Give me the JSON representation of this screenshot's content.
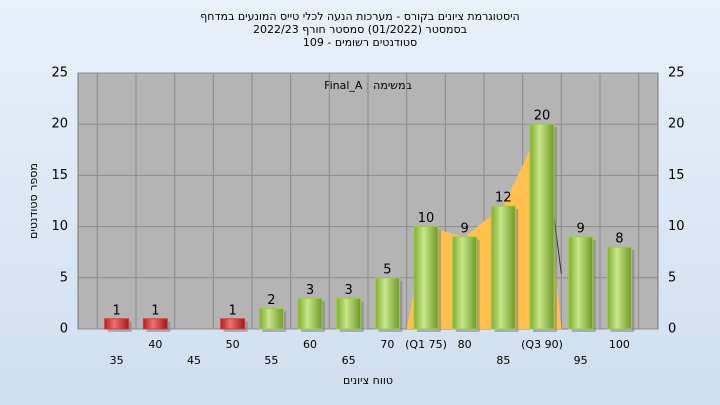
{
  "chart_data": {
    "type": "bar",
    "title": "היסטוגרמת ציונים בקורס - מערכות הנעה לכלי טייס המונעים במדחף",
    "subtitle": "בסמסטר (01/2022)  סמסטר חורף 2022/23",
    "subtitle2": "סטודנטים רשומים - 109",
    "annotation": "במשימה : Final_A",
    "y_label": "מספר סטודנטים",
    "x_label": "טווח ציונים",
    "categories": [
      "35",
      "40",
      "45",
      "50",
      "55",
      "60",
      "65",
      "70",
      "(Q1 75)",
      "80",
      "85",
      "(Q3 90)",
      "95",
      "100"
    ],
    "values": [
      1,
      1,
      null,
      1,
      2,
      3,
      3,
      5,
      10,
      9,
      12,
      20,
      9,
      8
    ],
    "colors": [
      "#d63a3a",
      "#d63a3a",
      "#d63a3a",
      "#d63a3a",
      "#9ccc4a",
      "#9ccc4a",
      "#9ccc4a",
      "#9ccc4a",
      "#9ccc4a",
      "#9ccc4a",
      "#9ccc4a",
      "#9ccc4a",
      "#9ccc4a",
      "#9ccc4a"
    ],
    "quartile_color": "#ffc04d",
    "ylim": [
      0,
      25
    ],
    "yticks": [
      0,
      5,
      10,
      15,
      20,
      25
    ],
    "grid": true
  }
}
